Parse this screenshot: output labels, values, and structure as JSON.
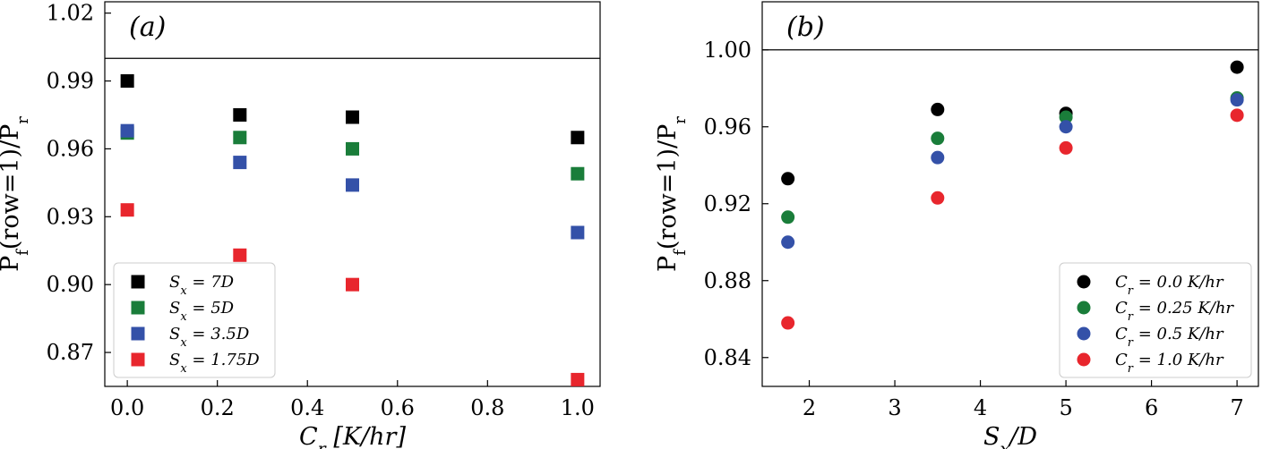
{
  "chart_data": [
    {
      "type": "scatter",
      "panel_label": "(a)",
      "xlabel": "C_r [K/hr]",
      "ylabel": "P_f(row=1)/P_r",
      "xlim": [
        -0.05,
        1.05
      ],
      "ylim": [
        0.855,
        1.025
      ],
      "xticks": [
        "0.0",
        "0.2",
        "0.4",
        "0.6",
        "0.8",
        "1.0"
      ],
      "yticks": [
        "0.87",
        "0.90",
        "0.93",
        "0.96",
        "0.99",
        "1.02"
      ],
      "reference_line": 1.0,
      "marker": "square",
      "legend_position": "lower-left",
      "series": [
        {
          "name": "S_x = 7D",
          "color": "#000000",
          "x": [
            0.0,
            0.25,
            0.5,
            1.0
          ],
          "y": [
            0.99,
            0.975,
            0.974,
            0.965
          ]
        },
        {
          "name": "S_x = 5D",
          "color": "#1a7d3a",
          "x": [
            0.0,
            0.25,
            0.5,
            1.0
          ],
          "y": [
            0.967,
            0.965,
            0.96,
            0.949
          ]
        },
        {
          "name": "S_x = 3.5D",
          "color": "#3451a8",
          "x": [
            0.0,
            0.25,
            0.5,
            1.0
          ],
          "y": [
            0.968,
            0.954,
            0.944,
            0.923
          ]
        },
        {
          "name": "S_x = 1.75D",
          "color": "#e8262d",
          "x": [
            0.0,
            0.25,
            0.5,
            1.0
          ],
          "y": [
            0.933,
            0.913,
            0.9,
            0.858
          ]
        }
      ]
    },
    {
      "type": "scatter",
      "panel_label": "(b)",
      "xlabel": "S_x/D",
      "ylabel": "P_f(row=1)/P_r",
      "xlim": [
        1.45,
        7.25
      ],
      "ylim": [
        0.825,
        1.025
      ],
      "xticks": [
        "2",
        "3",
        "4",
        "5",
        "6",
        "7"
      ],
      "yticks": [
        "0.84",
        "0.88",
        "0.92",
        "0.96",
        "1.00"
      ],
      "reference_line": 1.0,
      "marker": "circle",
      "legend_position": "lower-right",
      "series": [
        {
          "name": "C_r = 0.0 K/hr",
          "color": "#000000",
          "x": [
            1.75,
            3.5,
            5,
            7
          ],
          "y": [
            0.933,
            0.969,
            0.967,
            0.991
          ]
        },
        {
          "name": "C_r = 0.25 K/hr",
          "color": "#1a7d3a",
          "x": [
            1.75,
            3.5,
            5,
            7
          ],
          "y": [
            0.913,
            0.954,
            0.965,
            0.975
          ]
        },
        {
          "name": "C_r = 0.5 K/hr",
          "color": "#3451a8",
          "x": [
            1.75,
            3.5,
            5,
            7
          ],
          "y": [
            0.9,
            0.944,
            0.96,
            0.974
          ]
        },
        {
          "name": "C_r = 1.0 K/hr",
          "color": "#e8262d",
          "x": [
            1.75,
            3.5,
            5,
            7
          ],
          "y": [
            0.858,
            0.923,
            0.949,
            0.966
          ]
        }
      ]
    }
  ]
}
